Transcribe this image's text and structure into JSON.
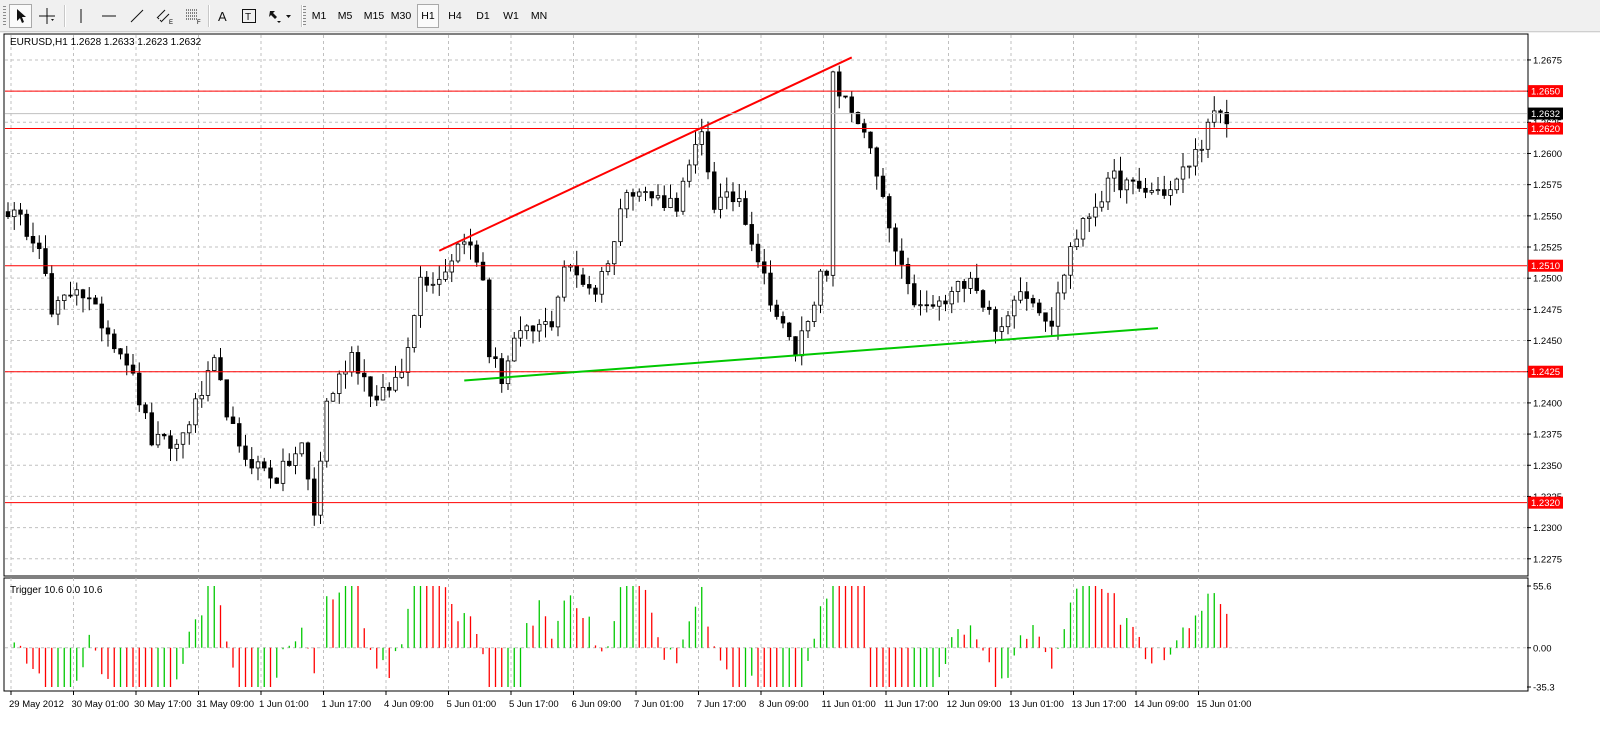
{
  "toolbar": {
    "tools": [
      {
        "name": "cursor-tool-button",
        "icon": "cursor-arrow-icon",
        "active": true
      },
      {
        "name": "crosshair-tool-button",
        "icon": "crosshair-icon",
        "active": false
      },
      {
        "name": "vertical-line-tool-button",
        "icon": "vertical-line-icon",
        "active": false
      },
      {
        "name": "horizontal-line-tool-button",
        "icon": "horizontal-line-icon",
        "active": false
      },
      {
        "name": "trendline-tool-button",
        "icon": "trendline-icon",
        "active": false
      },
      {
        "name": "equidistant-channel-tool-button",
        "icon": "channel-icon",
        "active": false
      },
      {
        "name": "fibonacci-tool-button",
        "icon": "fibonacci-icon",
        "active": false
      },
      {
        "name": "text-tool-button",
        "icon": "text-a-icon",
        "active": false
      },
      {
        "name": "text-label-tool-button",
        "icon": "text-label-icon",
        "active": false
      },
      {
        "name": "arrows-tool-button",
        "icon": "arrows-icon",
        "active": false
      }
    ],
    "timeframes": [
      {
        "label": "M1",
        "active": false
      },
      {
        "label": "M5",
        "active": false
      },
      {
        "label": "M15",
        "active": false
      },
      {
        "label": "M30",
        "active": false
      },
      {
        "label": "H1",
        "active": true
      },
      {
        "label": "H4",
        "active": false
      },
      {
        "label": "D1",
        "active": false
      },
      {
        "label": "W1",
        "active": false
      },
      {
        "label": "MN",
        "active": false
      }
    ]
  },
  "chart": {
    "header": "EURUSD,H1  1.2628 1.2633 1.2623 1.2632",
    "price_range": [
      1.2262,
      1.2695
    ],
    "price_ticks": [
      "1.2675",
      "1.2650",
      "1.2625",
      "1.2600",
      "1.2575",
      "1.2550",
      "1.2525",
      "1.2500",
      "1.2475",
      "1.2450",
      "1.2425",
      "1.2400",
      "1.2375",
      "1.2350",
      "1.2325",
      "1.2300",
      "1.2275"
    ],
    "current_price": {
      "value": "1.2632",
      "price": 1.2632
    },
    "horizontal_lines": [
      {
        "label": "1.2650",
        "price": 1.265
      },
      {
        "label": "1.2620",
        "price": 1.262
      },
      {
        "label": "1.2510",
        "price": 1.251
      },
      {
        "label": "1.2425",
        "price": 1.2425
      },
      {
        "label": "1.2320",
        "price": 1.232
      }
    ],
    "trendlines": [
      {
        "name": "resistance-trendline",
        "color": "#ff0000",
        "from": {
          "bar": 69,
          "price": 1.2522
        },
        "to": {
          "bar": 135,
          "price": 1.2677
        }
      },
      {
        "name": "support-trendline",
        "color": "#00c800",
        "from": {
          "bar": 73,
          "price": 1.2418
        },
        "to": {
          "bar": 184,
          "price": 1.246
        }
      }
    ],
    "anchors": [
      [
        0,
        1.2555
      ],
      [
        5,
        1.253
      ],
      [
        7,
        1.247
      ],
      [
        11,
        1.2495
      ],
      [
        19,
        1.2435
      ],
      [
        23,
        1.237
      ],
      [
        27,
        1.2365
      ],
      [
        33,
        1.243
      ],
      [
        37,
        1.236
      ],
      [
        43,
        1.234
      ],
      [
        47,
        1.2365
      ],
      [
        49,
        1.231
      ],
      [
        51,
        1.24
      ],
      [
        55,
        1.244
      ],
      [
        59,
        1.24
      ],
      [
        63,
        1.2425
      ],
      [
        66,
        1.25
      ],
      [
        69,
        1.25
      ],
      [
        73,
        1.2535
      ],
      [
        76,
        1.25
      ],
      [
        77,
        1.244
      ],
      [
        79,
        1.242
      ],
      [
        81,
        1.245
      ],
      [
        87,
        1.2465
      ],
      [
        89,
        1.251
      ],
      [
        94,
        1.249
      ],
      [
        97,
        1.253
      ],
      [
        99,
        1.2575
      ],
      [
        103,
        1.2565
      ],
      [
        107,
        1.256
      ],
      [
        111,
        1.2615
      ],
      [
        113,
        1.256
      ],
      [
        117,
        1.2565
      ],
      [
        121,
        1.25
      ],
      [
        123,
        1.247
      ],
      [
        126,
        1.244
      ],
      [
        130,
        1.25
      ],
      [
        131,
        1.25
      ],
      [
        132,
        1.266
      ],
      [
        134,
        1.264
      ],
      [
        137,
        1.262
      ],
      [
        139,
        1.258
      ],
      [
        142,
        1.252
      ],
      [
        144,
        1.249
      ],
      [
        146,
        1.2475
      ],
      [
        150,
        1.248
      ],
      [
        154,
        1.2505
      ],
      [
        156,
        1.248
      ],
      [
        159,
        1.2455
      ],
      [
        162,
        1.2495
      ],
      [
        167,
        1.2465
      ],
      [
        170,
        1.2525
      ],
      [
        174,
        1.256
      ],
      [
        177,
        1.258
      ],
      [
        181,
        1.257
      ],
      [
        186,
        1.257
      ],
      [
        190,
        1.26
      ],
      [
        193,
        1.263
      ],
      [
        195,
        1.2625
      ]
    ],
    "time_labels": [
      {
        "bar": 0,
        "text": "29 May 2012"
      },
      {
        "bar": 10,
        "text": "30 May 01:00"
      },
      {
        "bar": 20,
        "text": "30 May 17:00"
      },
      {
        "bar": 30,
        "text": "31 May 09:00"
      },
      {
        "bar": 40,
        "text": "1 Jun 01:00"
      },
      {
        "bar": 50,
        "text": "1 Jun 17:00"
      },
      {
        "bar": 60,
        "text": "4 Jun 09:00"
      },
      {
        "bar": 70,
        "text": "5 Jun 01:00"
      },
      {
        "bar": 80,
        "text": "5 Jun 17:00"
      },
      {
        "bar": 90,
        "text": "6 Jun 09:00"
      },
      {
        "bar": 100,
        "text": "7 Jun 01:00"
      },
      {
        "bar": 110,
        "text": "7 Jun 17:00"
      },
      {
        "bar": 120,
        "text": "8 Jun 09:00"
      },
      {
        "bar": 130,
        "text": "11 Jun 01:00"
      },
      {
        "bar": 140,
        "text": "11 Jun 17:00"
      },
      {
        "bar": 150,
        "text": "12 Jun 09:00"
      },
      {
        "bar": 160,
        "text": "13 Jun 01:00"
      },
      {
        "bar": 170,
        "text": "13 Jun 17:00"
      },
      {
        "bar": 180,
        "text": "14 Jun 09:00"
      },
      {
        "bar": 190,
        "text": "15 Jun 01:00"
      }
    ]
  },
  "indicator": {
    "header": "Trigger 10.6 0.0 10.6",
    "range": [
      -35.3,
      55.6
    ],
    "ticks": [
      "55.6",
      "0.00",
      "-35.3"
    ],
    "up_color": "#00c800",
    "down_color": "#ff0000"
  },
  "colors": {
    "level_line": "#ff0000",
    "grid": "#c0c0c0",
    "candle": "#000000",
    "price_tag_text": "#ffffff",
    "current_tag_bg": "#000000"
  }
}
